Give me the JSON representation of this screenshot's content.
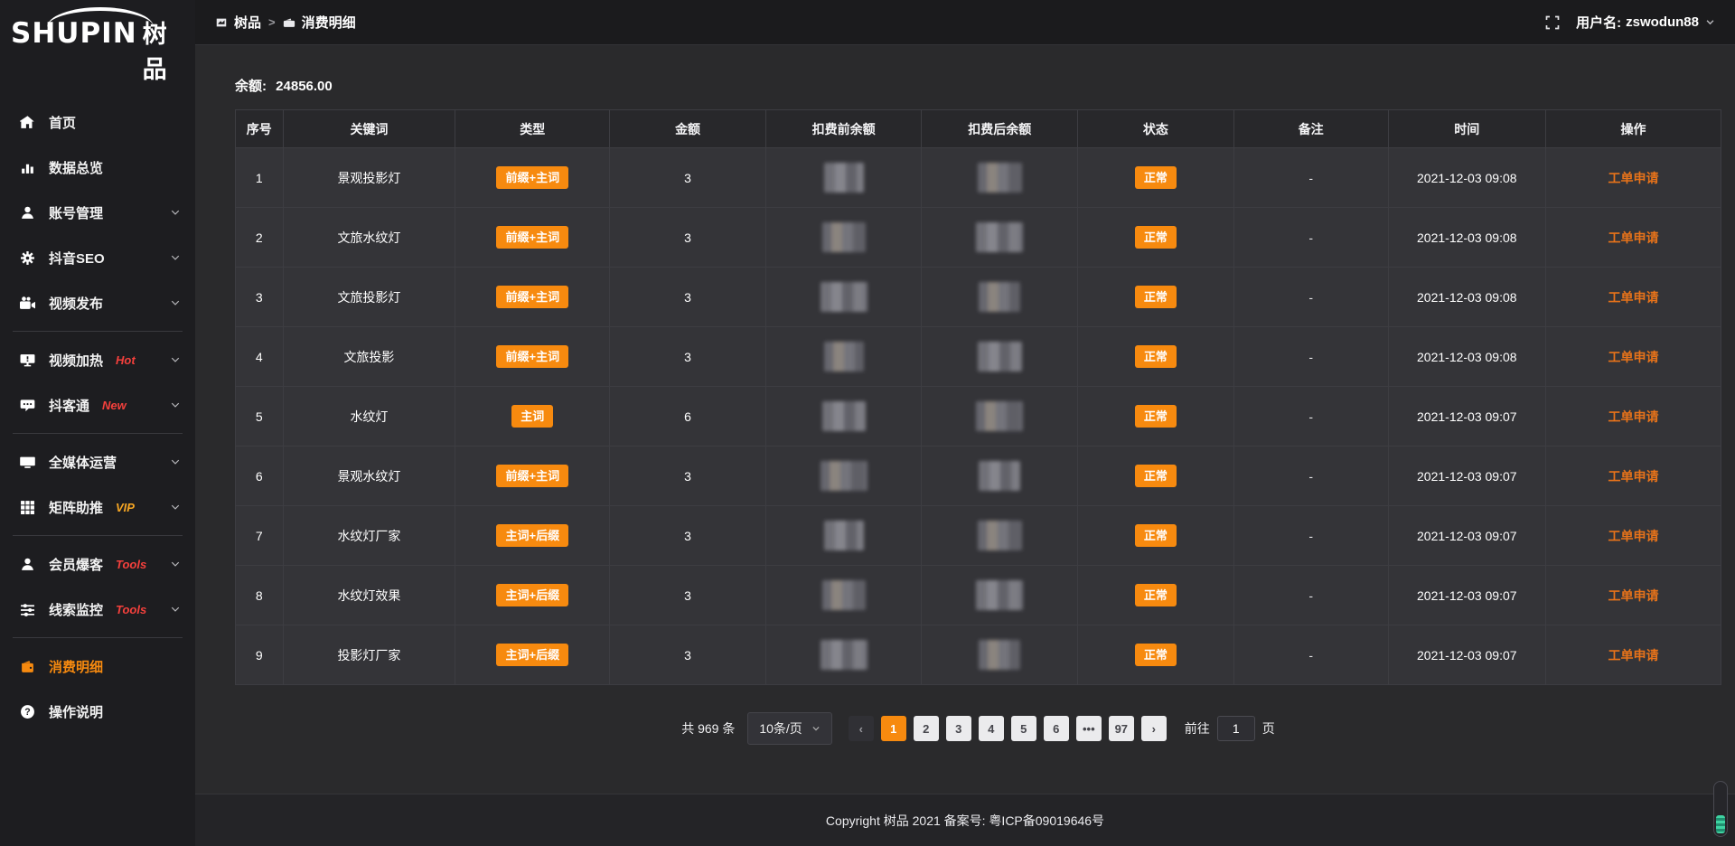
{
  "app": {
    "logo_text": "SHUPIN",
    "logo_cjk": "树品"
  },
  "header": {
    "breadcrumb": [
      {
        "label": "树品"
      },
      {
        "label": "消费明细"
      }
    ],
    "user_label": "用户名:",
    "username": "zswodun88"
  },
  "sidebar": {
    "items": [
      {
        "label": "首页",
        "icon": "home-icon"
      },
      {
        "label": "数据总览",
        "icon": "bar-chart-icon"
      },
      {
        "label": "账号管理",
        "icon": "user-icon",
        "chevron": true
      },
      {
        "label": "抖音SEO",
        "icon": "gear-icon",
        "chevron": true
      },
      {
        "label": "视频发布",
        "icon": "video-camera-icon",
        "chevron": true
      },
      {
        "divider": true
      },
      {
        "label": "视频加热",
        "icon": "screen-heat-icon",
        "tag": "Hot",
        "tag_color": "hot",
        "chevron": true
      },
      {
        "label": "抖客通",
        "icon": "chat-bubble-icon",
        "tag": "New",
        "tag_color": "hot",
        "chevron": true
      },
      {
        "divider": true
      },
      {
        "label": "全媒体运营",
        "icon": "monitor-icon",
        "chevron": true
      },
      {
        "label": "矩阵助推",
        "icon": "grid-icon",
        "tag": "VIP",
        "tag_color": "vip",
        "chevron": true
      },
      {
        "divider": true
      },
      {
        "label": "会员爆客",
        "icon": "member-icon",
        "tag": "Tools",
        "tag_color": "hot",
        "chevron": true
      },
      {
        "label": "线索监控",
        "icon": "sliders-icon",
        "tag": "Tools",
        "tag_color": "hot",
        "chevron": true
      },
      {
        "divider": true
      },
      {
        "label": "消费明细",
        "icon": "wallet-icon",
        "active": true
      },
      {
        "label": "操作说明",
        "icon": "question-icon"
      }
    ]
  },
  "balance": {
    "label": "余额:",
    "value": "24856.00"
  },
  "table": {
    "columns": [
      "序号",
      "关键词",
      "类型",
      "金额",
      "扣费前余额",
      "扣费后余额",
      "状态",
      "备注",
      "时间",
      "操作"
    ],
    "rows": [
      {
        "idx": "1",
        "keyword": "景观投影灯",
        "type": "前缀+主词",
        "amount": "3",
        "status": "正常",
        "remark": "-",
        "time": "2021-12-03 09:08",
        "action": "工单申请"
      },
      {
        "idx": "2",
        "keyword": "文旅水纹灯",
        "type": "前缀+主词",
        "amount": "3",
        "status": "正常",
        "remark": "-",
        "time": "2021-12-03 09:08",
        "action": "工单申请"
      },
      {
        "idx": "3",
        "keyword": "文旅投影灯",
        "type": "前缀+主词",
        "amount": "3",
        "status": "正常",
        "remark": "-",
        "time": "2021-12-03 09:08",
        "action": "工单申请"
      },
      {
        "idx": "4",
        "keyword": "文旅投影",
        "type": "前缀+主词",
        "amount": "3",
        "status": "正常",
        "remark": "-",
        "time": "2021-12-03 09:08",
        "action": "工单申请"
      },
      {
        "idx": "5",
        "keyword": "水纹灯",
        "type": "主词",
        "amount": "6",
        "status": "正常",
        "remark": "-",
        "time": "2021-12-03 09:07",
        "action": "工单申请"
      },
      {
        "idx": "6",
        "keyword": "景观水纹灯",
        "type": "前缀+主词",
        "amount": "3",
        "status": "正常",
        "remark": "-",
        "time": "2021-12-03 09:07",
        "action": "工单申请"
      },
      {
        "idx": "7",
        "keyword": "水纹灯厂家",
        "type": "主词+后缀",
        "amount": "3",
        "status": "正常",
        "remark": "-",
        "time": "2021-12-03 09:07",
        "action": "工单申请"
      },
      {
        "idx": "8",
        "keyword": "水纹灯效果",
        "type": "主词+后缀",
        "amount": "3",
        "status": "正常",
        "remark": "-",
        "time": "2021-12-03 09:07",
        "action": "工单申请"
      },
      {
        "idx": "9",
        "keyword": "投影灯厂家",
        "type": "主词+后缀",
        "amount": "3",
        "status": "正常",
        "remark": "-",
        "time": "2021-12-03 09:07",
        "action": "工单申请"
      }
    ]
  },
  "pagination": {
    "total_text": "共 969 条",
    "page_size": "10条/页",
    "pages": [
      "1",
      "2",
      "3",
      "4",
      "5",
      "6",
      "•••",
      "97"
    ],
    "active_page": "1",
    "goto_label": "前往",
    "goto_value": "1",
    "goto_suffix": "页"
  },
  "footer": {
    "copyright": "Copyright 树品 2021 备案号: 粤ICP备09019646号"
  },
  "colors": {
    "accent": "#f78a0f",
    "hot": "#f4403c",
    "vip": "#f6a623"
  }
}
